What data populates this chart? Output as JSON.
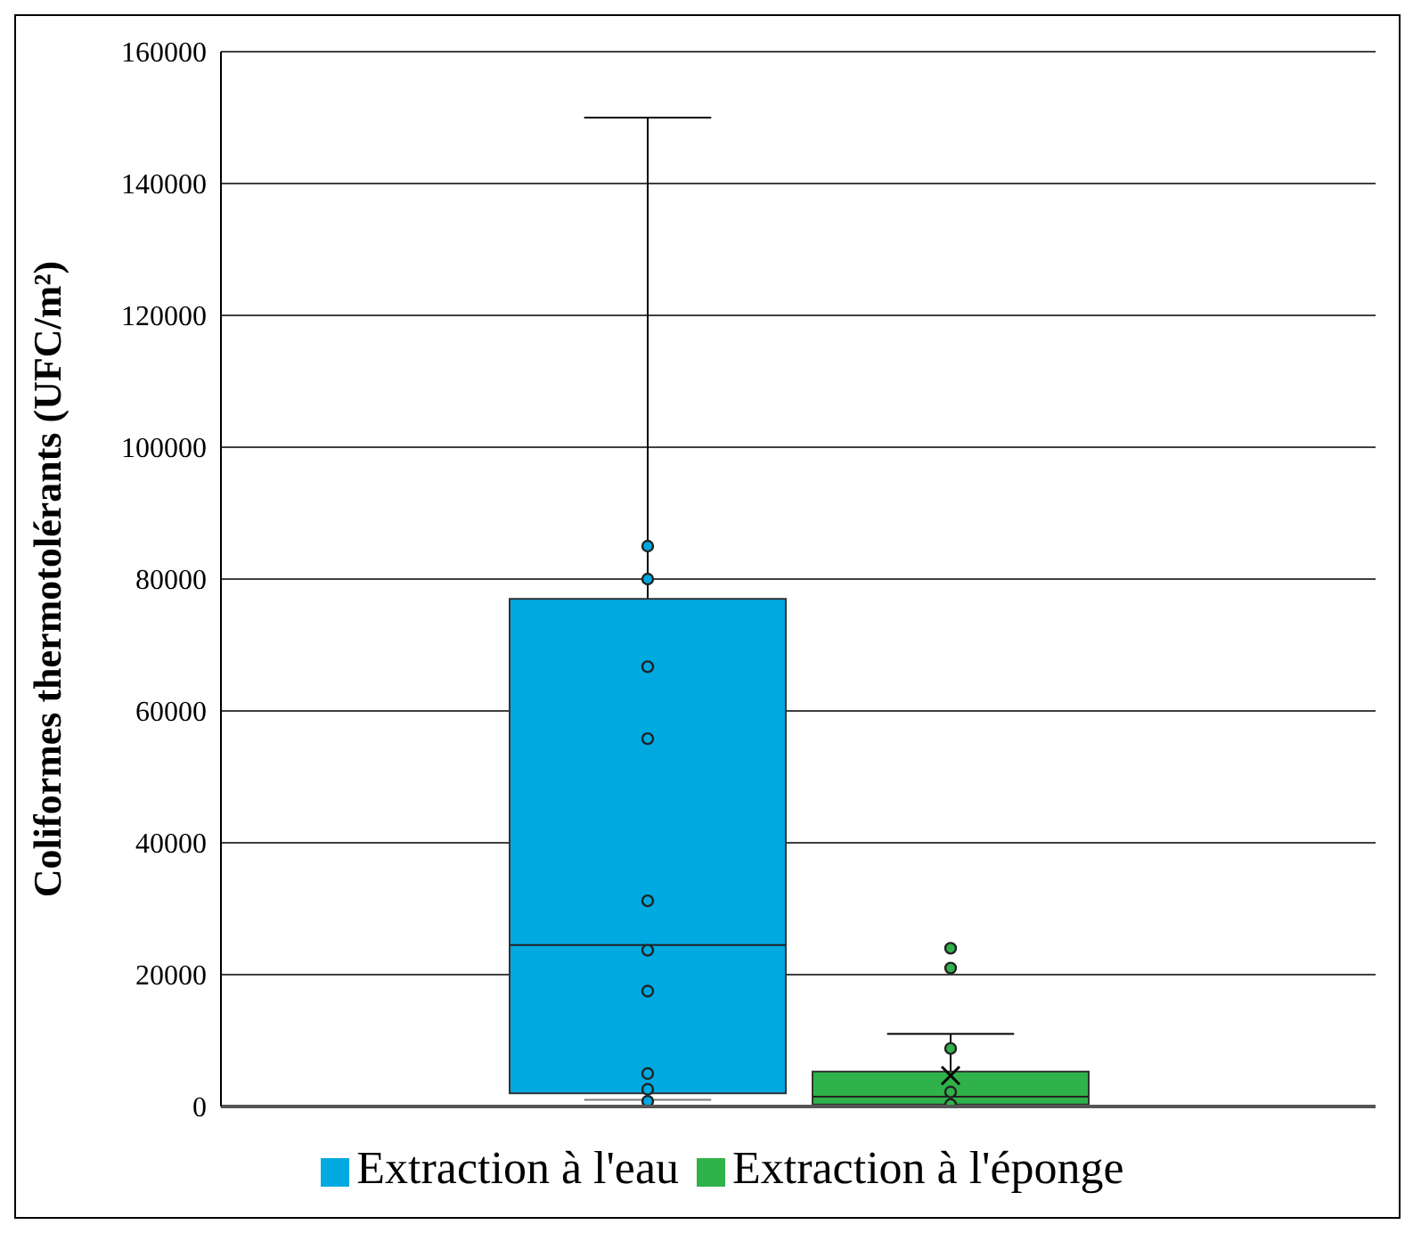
{
  "chart_data": {
    "type": "box",
    "ylabel": "Coliformes thermotolérants (UFC/m²)",
    "categories": [
      null
    ],
    "series": [
      {
        "name": "Extraction à l'eau",
        "color": "#00a9e0",
        "boxes": [
          {
            "low": 1000,
            "q1": 2000,
            "median": 24500,
            "q3": 77000,
            "high": 150000,
            "outliers": [
              85000,
              80000,
              66700,
              55800,
              31200,
              23700,
              17500,
              5000,
              2600,
              800
            ]
          }
        ]
      },
      {
        "name": "Extraction à l'éponge",
        "color": "#30b24a",
        "boxes": [
          {
            "low": 0,
            "q1": 300,
            "median": 1500,
            "q3": 5300,
            "high": 11000,
            "mean": 4700,
            "outliers": [
              24000,
              21000,
              8800,
              2200,
              300
            ]
          }
        ]
      }
    ],
    "ylim": [
      0,
      160000
    ],
    "yticks": [
      0,
      20000,
      40000,
      60000,
      80000,
      100000,
      120000,
      140000,
      160000
    ],
    "grid": "y",
    "legend": "bottom"
  }
}
